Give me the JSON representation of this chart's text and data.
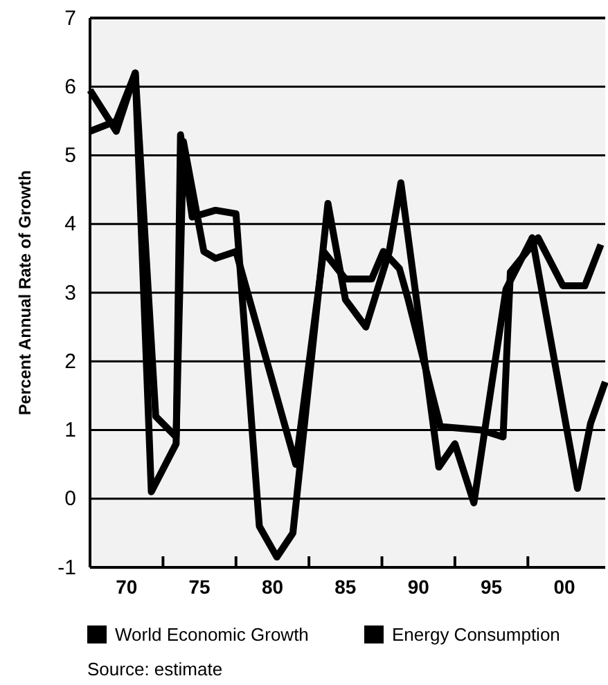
{
  "chart_data": {
    "type": "line",
    "ylabel": "Percent Annual Rate of Growth",
    "annotations": [
      "Source: estimate"
    ],
    "xlim": [
      1967.5,
      2002.8
    ],
    "ylim": [
      -1,
      7
    ],
    "xticks": [
      {
        "value": 1970,
        "label": "70"
      },
      {
        "value": 1972.5,
        "label": null
      },
      {
        "value": 1975,
        "label": "75"
      },
      {
        "value": 1977.5,
        "label": null
      },
      {
        "value": 1980,
        "label": "80"
      },
      {
        "value": 1982.5,
        "label": null
      },
      {
        "value": 1985,
        "label": "85"
      },
      {
        "value": 1987.5,
        "label": null
      },
      {
        "value": 1990,
        "label": "90"
      },
      {
        "value": 1992.5,
        "label": null
      },
      {
        "value": 1995,
        "label": "95"
      },
      {
        "value": 1997.5,
        "label": null
      },
      {
        "value": 2000,
        "label": "00"
      }
    ],
    "yticks": [
      -1,
      0,
      1,
      2,
      3,
      4,
      5,
      6,
      7
    ],
    "grid": "y",
    "legend": "bottom",
    "line_style": "solid",
    "series": [
      {
        "name": "World Economic Growth",
        "color": "#000000",
        "x": [
          1967.5,
          1969.3,
          1970.6,
          1972,
          1973.4,
          1973.9,
          1975.3,
          1976.1,
          1977.5,
          1981.6,
          1983.5,
          1985,
          1986.8,
          1987.6,
          1988.7,
          1989.3,
          1991.5,
          1994.3,
          1995.8,
          1996.3,
          1998.2,
          1999.9,
          2001.4,
          2002.5
        ],
        "values": [
          5.35,
          5.5,
          6.2,
          1.2,
          0.9,
          5.2,
          3.6,
          3.5,
          3.6,
          0.5,
          3.6,
          3.2,
          3.2,
          3.6,
          3.35,
          2.9,
          1.05,
          1.0,
          0.9,
          3.3,
          3.8,
          3.1,
          3.1,
          3.7
        ]
      },
      {
        "name": "Energy Consumption",
        "color": "#000000",
        "x": [
          1967.5,
          1969.3,
          1970.6,
          1971.7,
          1973.4,
          1973.7,
          1974.5,
          1976.1,
          1977.5,
          1979.1,
          1980.3,
          1981.4,
          1983.8,
          1985,
          1986.4,
          1988,
          1988.8,
          1991.4,
          1992.5,
          1993.8,
          1996,
          1997.8,
          2000.9,
          2001.8,
          2002.8
        ],
        "values": [
          5.95,
          5.35,
          6.2,
          0.1,
          0.8,
          5.3,
          4.1,
          4.2,
          4.15,
          -0.4,
          -0.85,
          -0.5,
          4.3,
          2.9,
          2.5,
          3.6,
          4.6,
          0.46,
          0.8,
          -0.06,
          3.05,
          3.8,
          0.15,
          1.1,
          1.7
        ]
      }
    ]
  }
}
